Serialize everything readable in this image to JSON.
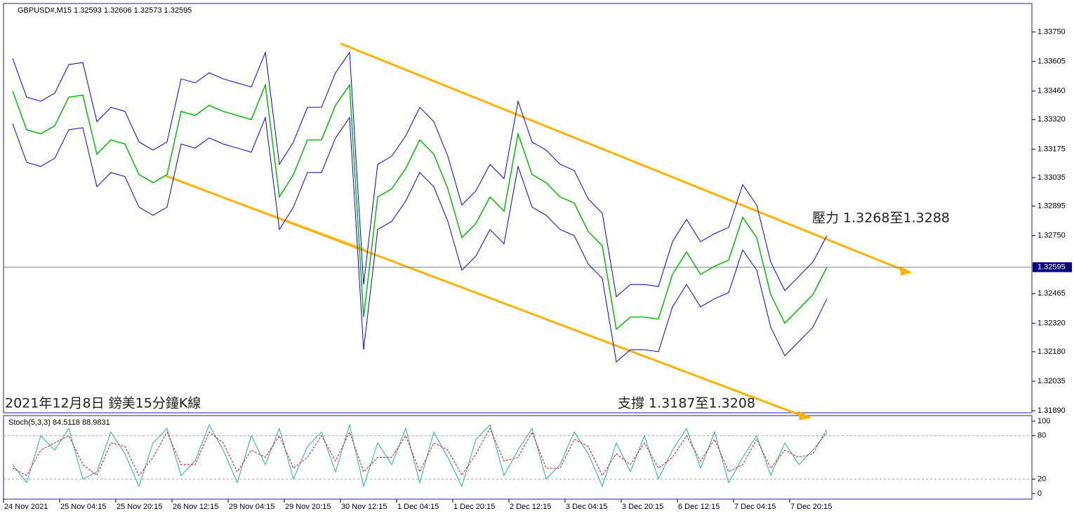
{
  "chart_data": [
    {
      "type": "line",
      "title": "GBPUSD#,M15  1.32593 1.32606 1.32573 1.32595",
      "annotations": [
        "壓力 1.3268至1.3288",
        "支撐 1.3187至1.3208",
        "2021年12月8日 鎊美15分鐘K線"
      ],
      "last_price": 1.32595,
      "categories": [
        null,
        "24 Nov 2021",
        null,
        null,
        null,
        "25 Nov 04:15",
        null,
        null,
        null,
        "25 Nov 20:15",
        null,
        null,
        null,
        "26 Nov 12:15",
        null,
        null,
        null,
        "29 Nov 04:15",
        null,
        null,
        null,
        "29 Nov 20:15",
        null,
        null,
        null,
        "30 Nov 12:15",
        null,
        null,
        null,
        "1 Dec 04:15",
        null,
        null,
        null,
        "1 Dec 20:15",
        null,
        null,
        null,
        "2 Dec 12:15",
        null,
        null,
        null,
        "3 Dec 04:15",
        null,
        null,
        null,
        "3 Dec 20:15",
        null,
        null,
        null,
        "6 Dec 12:15",
        null,
        null,
        null,
        "7 Dec 04:15",
        null,
        null,
        null,
        "7 Dec 20:15",
        null
      ],
      "series": [
        {
          "color": "#0000ff",
          "values": [
            1.3362,
            1.3343,
            1.3341,
            1.3345,
            1.3359,
            1.336,
            1.3331,
            1.3338,
            1.3336,
            1.3321,
            1.3317,
            1.3321,
            1.3352,
            1.335,
            1.3355,
            1.3352,
            1.335,
            1.3348,
            1.3365,
            1.331,
            1.3321,
            1.3338,
            1.3338,
            1.3355,
            1.3365,
            1.3251,
            1.331,
            1.3314,
            1.3324,
            1.3338,
            1.3331,
            1.3314,
            1.329,
            1.3297,
            1.331,
            1.3303,
            1.3341,
            1.3321,
            1.3317,
            1.331,
            1.3307,
            1.3293,
            1.3286,
            1.3245,
            1.3251,
            1.3251,
            1.325,
            1.3272,
            1.3283,
            1.3272,
            1.3276,
            1.3279,
            1.33,
            1.329,
            1.3262,
            1.3248,
            1.3255,
            1.3262,
            1.3275
          ]
        },
        {
          "color": "#00c000",
          "values": [
            1.3346,
            1.3327,
            1.3325,
            1.3329,
            1.3343,
            1.3344,
            1.3315,
            1.3322,
            1.332,
            1.3305,
            1.3301,
            1.3305,
            1.3336,
            1.3334,
            1.3339,
            1.3336,
            1.3334,
            1.3332,
            1.3349,
            1.3294,
            1.3305,
            1.3322,
            1.3322,
            1.3339,
            1.3349,
            1.3235,
            1.3294,
            1.3298,
            1.3308,
            1.3322,
            1.3315,
            1.3298,
            1.3274,
            1.3281,
            1.3294,
            1.3287,
            1.3325,
            1.3305,
            1.3301,
            1.3294,
            1.3291,
            1.3277,
            1.327,
            1.3229,
            1.3235,
            1.3235,
            1.3234,
            1.3256,
            1.3267,
            1.3256,
            1.326,
            1.3263,
            1.3284,
            1.3274,
            1.3246,
            1.3232,
            1.3239,
            1.3246,
            1.32595
          ]
        },
        {
          "color": "#0000ff",
          "values": [
            1.333,
            1.3311,
            1.3309,
            1.3313,
            1.3327,
            1.3328,
            1.3299,
            1.3306,
            1.3304,
            1.3289,
            1.3285,
            1.3289,
            1.332,
            1.3318,
            1.3323,
            1.332,
            1.3318,
            1.3316,
            1.3333,
            1.3278,
            1.3289,
            1.3306,
            1.3306,
            1.3323,
            1.3333,
            1.3219,
            1.3278,
            1.3282,
            1.3292,
            1.3306,
            1.3299,
            1.3282,
            1.3258,
            1.3265,
            1.3278,
            1.3271,
            1.3309,
            1.3289,
            1.3285,
            1.3278,
            1.3275,
            1.3261,
            1.3254,
            1.3213,
            1.3219,
            1.3219,
            1.3218,
            1.324,
            1.3251,
            1.324,
            1.3244,
            1.3247,
            1.3268,
            1.3258,
            1.323,
            1.3216,
            1.3223,
            1.323,
            1.3244
          ]
        }
      ],
      "ylim": [
        1.3188,
        1.3389
      ],
      "yticks": [
        {
          "value": 1.3189,
          "label": "1.31890"
        },
        1.32035,
        {
          "value": 1.3218,
          "label": "1.32180"
        },
        {
          "value": 1.3232,
          "label": "1.32320"
        },
        1.32465,
        {
          "value": 1.3275,
          "label": "1.32750"
        },
        1.32895,
        1.33035,
        1.33175,
        {
          "value": 1.3332,
          "label": "1.33320"
        },
        {
          "value": 1.3346,
          "label": "1.33460"
        },
        1.33605,
        {
          "value": 1.3375,
          "label": "1.33750"
        }
      ]
    },
    {
      "type": "line",
      "title": "Stoch(5,3,3) 84.5118 88.9831",
      "series": [
        {
          "color": "#20b2aa",
          "values": [
            40,
            15,
            80,
            60,
            90,
            20,
            30,
            85,
            55,
            10,
            70,
            90,
            25,
            45,
            95,
            60,
            15,
            80,
            40,
            90,
            20,
            65,
            85,
            30,
            95,
            10,
            70,
            40,
            90,
            15,
            85,
            50,
            10,
            75,
            95,
            25,
            60,
            90,
            20,
            40,
            85,
            55,
            10,
            70,
            30,
            80,
            20,
            60,
            90,
            35,
            85,
            15,
            50,
            80,
            25,
            70,
            40,
            60,
            84.5118
          ]
        },
        {
          "color": "#ff0000",
          "dashed": true,
          "values": [
            35,
            25,
            60,
            70,
            80,
            40,
            25,
            70,
            65,
            25,
            50,
            85,
            40,
            40,
            85,
            70,
            30,
            60,
            50,
            80,
            35,
            50,
            80,
            45,
            85,
            30,
            50,
            50,
            80,
            30,
            70,
            60,
            25,
            55,
            90,
            45,
            50,
            85,
            35,
            35,
            75,
            65,
            25,
            55,
            40,
            70,
            35,
            50,
            80,
            45,
            75,
            30,
            40,
            75,
            35,
            60,
            50,
            55,
            88.9831
          ]
        }
      ],
      "ylim": [
        0,
        100
      ],
      "yticks": [
        0,
        20,
        80,
        100
      ]
    }
  ]
}
